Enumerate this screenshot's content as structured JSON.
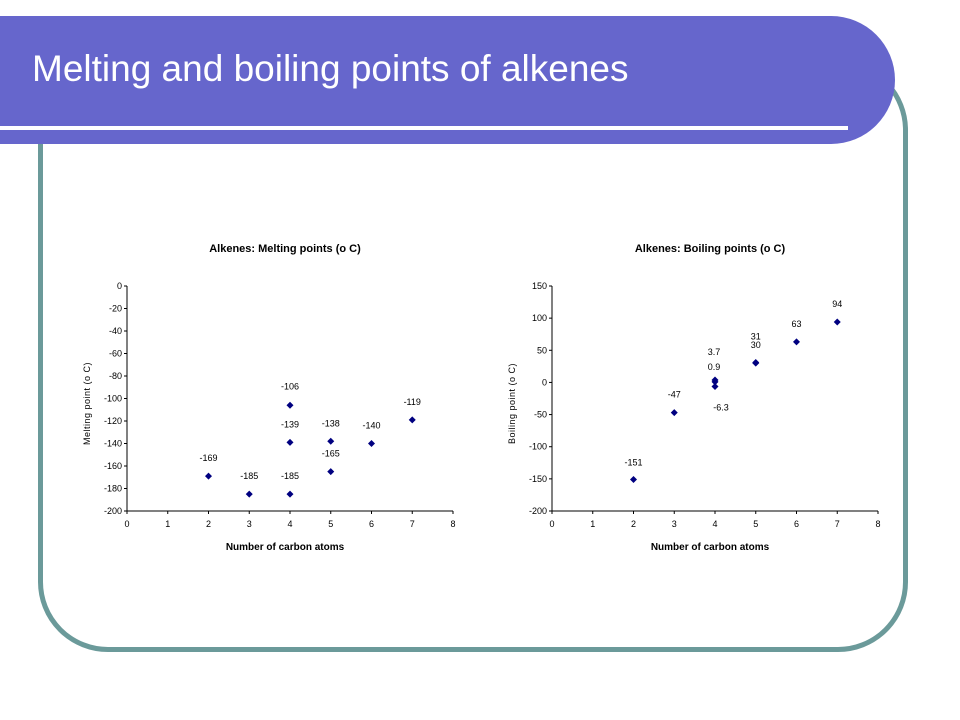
{
  "slide": {
    "title": "Melting and boiling points of alkenes",
    "colors": {
      "banner": "#6666cc",
      "border": "#6b9a9a",
      "marker": "#000080"
    }
  },
  "chart_data": [
    {
      "type": "scatter",
      "title": "Alkenes:  Melting points (o C)",
      "xlabel": "Number of carbon atoms",
      "ylabel": "Melting point (o C)",
      "xlim": [
        0,
        8
      ],
      "ylim": [
        -200,
        0
      ],
      "xticks": [
        0,
        1,
        2,
        3,
        4,
        5,
        6,
        7,
        8
      ],
      "yticks": [
        0,
        -20,
        -40,
        -60,
        -80,
        -100,
        -120,
        -140,
        -160,
        -180,
        -200
      ],
      "grid": false,
      "legend": "none",
      "points": [
        {
          "x": 2,
          "y": -169,
          "label": "-169"
        },
        {
          "x": 3,
          "y": -185,
          "label": "-185"
        },
        {
          "x": 4,
          "y": -106,
          "label": "-106"
        },
        {
          "x": 4,
          "y": -139,
          "label": "-139"
        },
        {
          "x": 4,
          "y": -185,
          "label": "-185"
        },
        {
          "x": 5,
          "y": -138,
          "label": "-138"
        },
        {
          "x": 5,
          "y": -165,
          "label": "-165"
        },
        {
          "x": 6,
          "y": -140,
          "label": "-140"
        },
        {
          "x": 7,
          "y": -119,
          "label": "-119"
        }
      ]
    },
    {
      "type": "scatter",
      "title": "Alkenes: Boiling points (o C)",
      "xlabel": "Number of carbon atoms",
      "ylabel": "Boiling point (o C)",
      "xlim": [
        0,
        8
      ],
      "ylim": [
        -200,
        150
      ],
      "xticks": [
        0,
        1,
        2,
        3,
        4,
        5,
        6,
        7,
        8
      ],
      "yticks": [
        150,
        100,
        50,
        0,
        -50,
        -100,
        -150,
        -200
      ],
      "grid": false,
      "legend": "none",
      "points": [
        {
          "x": 2,
          "y": -151,
          "label": "-151"
        },
        {
          "x": 3,
          "y": -47,
          "label": "-47"
        },
        {
          "x": 4,
          "y": 3.7,
          "label": "3.7"
        },
        {
          "x": 4,
          "y": 0.9,
          "label": "0.9"
        },
        {
          "x": 4,
          "y": -6.3,
          "label": "-6.3"
        },
        {
          "x": 5,
          "y": 31,
          "label": "31"
        },
        {
          "x": 5,
          "y": 30,
          "label": "30"
        },
        {
          "x": 6,
          "y": 63,
          "label": "63"
        },
        {
          "x": 7,
          "y": 94,
          "label": "94"
        }
      ]
    }
  ]
}
